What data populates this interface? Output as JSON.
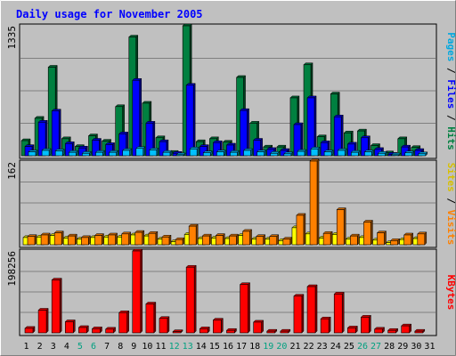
{
  "chart_data": {
    "type": "bar",
    "title": "Daily usage for November 2005",
    "x": [
      "1",
      "2",
      "3",
      "4",
      "5",
      "6",
      "7",
      "8",
      "9",
      "10",
      "11",
      "12",
      "13",
      "14",
      "15",
      "16",
      "17",
      "18",
      "19",
      "20",
      "21",
      "22",
      "23",
      "24",
      "25",
      "26",
      "27",
      "28",
      "29",
      "30",
      "31"
    ],
    "weekend_days": [
      "5",
      "6",
      "12",
      "13",
      "19",
      "20",
      "26",
      "27"
    ],
    "panels": [
      {
        "name": "hits",
        "max_label": "1335",
        "ylim": [
          0,
          1335
        ],
        "legend": [
          "Pages",
          "Files",
          "Hits"
        ],
        "series": [
          {
            "name": "Hits",
            "color": "#008040",
            "values": [
              155,
              385,
              910,
              175,
              95,
              205,
              150,
              505,
              1220,
              540,
              185,
              35,
              1335,
              145,
              175,
              140,
              805,
              335,
              90,
              90,
              595,
              935,
              195,
              635,
              235,
              255,
              105,
              30,
              175,
              85,
              null
            ]
          },
          {
            "name": "Files",
            "color": "#0000ff",
            "values": [
              95,
              345,
              460,
              125,
              80,
              160,
              115,
              225,
              775,
              335,
              145,
              25,
              725,
              95,
              135,
              110,
              465,
              160,
              65,
              55,
              320,
              595,
              135,
              400,
              120,
              185,
              65,
              15,
              90,
              55,
              null
            ]
          },
          {
            "name": "Pages",
            "color": "#00c0ff",
            "values": [
              40,
              55,
              50,
              35,
              25,
              35,
              35,
              55,
              75,
              60,
              35,
              10,
              70,
              30,
              40,
              35,
              55,
              40,
              25,
              20,
              45,
              70,
              40,
              55,
              35,
              40,
              25,
              8,
              30,
              20,
              null
            ]
          }
        ]
      },
      {
        "name": "visits",
        "max_label": "162",
        "ylim": [
          0,
          162
        ],
        "legend": [
          "Sites",
          "Visits"
        ],
        "series": [
          {
            "name": "Sites",
            "color": "#ffff00",
            "values": [
              14,
              15,
              18,
              13,
              11,
              14,
              15,
              15,
              19,
              17,
              11,
              6,
              20,
              12,
              13,
              12,
              18,
              11,
              11,
              8,
              33,
              21,
              13,
              20,
              11,
              14,
              9,
              4,
              10,
              12,
              null
            ]
          },
          {
            "name": "Visits",
            "color": "#ff8000",
            "values": [
              16,
              19,
              23,
              17,
              14,
              18,
              19,
              21,
              24,
              22,
              15,
              10,
              36,
              17,
              18,
              17,
              26,
              16,
              16,
              11,
              57,
              162,
              22,
              68,
              17,
              44,
              23,
              8,
              19,
              21,
              null
            ]
          }
        ]
      },
      {
        "name": "kbytes",
        "max_label": "198256",
        "ylim": [
          0,
          198256
        ],
        "legend": [
          "KBytes"
        ],
        "series": [
          {
            "name": "KBytes",
            "color": "#ff0000",
            "values": [
              11000,
              55000,
              128000,
              27000,
              13000,
              10000,
              9000,
              49000,
              198256,
              70000,
              35000,
              3000,
              159000,
              10000,
              31000,
              6000,
              117000,
              26000,
              4000,
              4000,
              89000,
              112000,
              34000,
              94000,
              12000,
              38000,
              9000,
              6000,
              17000,
              4000,
              null
            ]
          }
        ]
      }
    ]
  }
}
